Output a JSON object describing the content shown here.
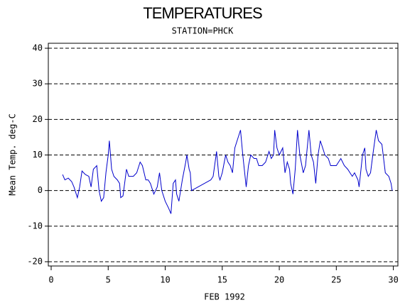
{
  "chart_data": {
    "type": "line",
    "title": "TEMPERATURES",
    "subtitle": "STATION=PHCK",
    "x_label": "FEB 1992",
    "y_label": "Mean Temp. deg-C",
    "color": "#0000cc",
    "grid": true,
    "xlim": [
      -0.25,
      30.4
    ],
    "ylim": [
      -21.2,
      41.4
    ],
    "xticks": [
      0,
      5,
      10,
      15,
      20,
      25,
      30
    ],
    "yticks": [
      -20,
      -10,
      0,
      10,
      20,
      30,
      40
    ],
    "x": [
      1.0,
      1.2,
      1.5,
      1.8,
      2.0,
      2.3,
      2.5,
      2.7,
      3.0,
      3.3,
      3.5,
      3.7,
      4.0,
      4.2,
      4.4,
      4.6,
      4.8,
      5.0,
      5.1,
      5.3,
      5.5,
      5.8,
      6.0,
      6.1,
      6.3,
      6.6,
      6.8,
      7.2,
      7.5,
      7.8,
      8.0,
      8.3,
      8.5,
      8.7,
      9.0,
      9.3,
      9.5,
      9.7,
      10.0,
      10.3,
      10.5,
      10.7,
      10.9,
      11.0,
      11.2,
      11.5,
      11.8,
      11.9,
      12.1,
      12.2,
      12.3,
      14.0,
      14.2,
      14.5,
      14.7,
      14.8,
      15.0,
      15.3,
      15.5,
      15.7,
      15.9,
      16.1,
      16.4,
      16.6,
      16.8,
      17.0,
      17.1,
      17.3,
      17.5,
      17.8,
      18.0,
      18.2,
      18.5,
      18.8,
      19.1,
      19.3,
      19.5,
      19.6,
      19.8,
      20.0,
      20.3,
      20.5,
      20.7,
      20.9,
      21.0,
      21.2,
      21.4,
      21.6,
      21.8,
      22.1,
      22.3,
      22.6,
      22.8,
      23.0,
      23.2,
      23.4,
      23.6,
      23.8,
      24.0,
      24.3,
      24.5,
      25.0,
      25.4,
      25.7,
      26.0,
      26.4,
      26.6,
      26.9,
      27.0,
      27.3,
      27.5,
      27.6,
      27.8,
      28.0,
      28.2,
      28.5,
      28.7,
      29.0,
      29.3,
      29.6,
      29.8,
      29.9
    ],
    "values": [
      4.5,
      3,
      3.5,
      2.5,
      1,
      -2,
      1,
      5.5,
      4.5,
      4,
      1,
      6,
      7,
      0,
      -3,
      -2,
      5,
      10,
      14,
      6,
      4,
      3,
      2,
      -2,
      -1.5,
      6,
      4,
      4,
      5,
      8,
      7,
      3,
      3,
      2,
      -1,
      1,
      5,
      0,
      -3,
      -5,
      -6.5,
      2,
      3,
      -1,
      -3,
      3,
      8,
      10,
      6,
      5,
      0,
      3,
      4,
      11,
      4,
      3,
      5,
      10,
      8,
      7,
      5,
      12,
      15,
      17,
      10,
      4,
      1,
      7,
      10,
      9,
      9,
      7,
      7,
      8,
      11,
      9,
      10,
      17,
      12,
      10,
      12,
      5,
      8,
      6,
      2,
      -1,
      6,
      17,
      10,
      5,
      7,
      17,
      10,
      8,
      2,
      10,
      14,
      12,
      10,
      9,
      7,
      7,
      9,
      7,
      6,
      4,
      5,
      3,
      1,
      10,
      12,
      6,
      4,
      5,
      10,
      17,
      14,
      13,
      5,
      4,
      2,
      0
    ]
  }
}
